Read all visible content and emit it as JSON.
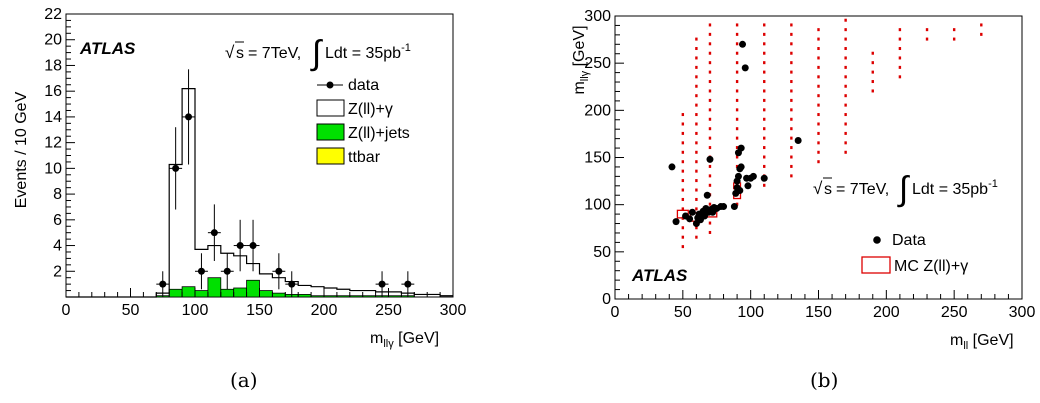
{
  "chart_data": [
    {
      "panel": "a",
      "type": "bar",
      "caption": "(a)",
      "brand": "ATLAS",
      "energy_label": "= 7TeV,",
      "lumi_label": "Ldt = 35pb",
      "lumi_exp": "-1",
      "xlabel": "m",
      "xlabel_sub": "llγ",
      "xlabel_unit": "[GeV]",
      "ylabel": "Events / 10 GeV",
      "xlim": [
        0,
        300
      ],
      "ylim": [
        0,
        22
      ],
      "xticks": [
        0,
        50,
        100,
        150,
        200,
        250,
        300
      ],
      "yticks": [
        2,
        4,
        6,
        8,
        10,
        12,
        14,
        16,
        18,
        20,
        22
      ],
      "bin_edges": [
        0,
        10,
        20,
        30,
        40,
        50,
        60,
        70,
        80,
        90,
        100,
        110,
        120,
        130,
        140,
        150,
        160,
        170,
        180,
        190,
        200,
        210,
        220,
        230,
        240,
        250,
        260,
        270,
        280,
        290,
        300
      ],
      "series": [
        {
          "name": "Z(ll)+γ",
          "style": "step",
          "values": [
            0,
            0,
            0,
            0,
            0,
            0,
            0,
            0.3,
            10.3,
            16.2,
            3.7,
            4.0,
            3.4,
            3.2,
            2.6,
            1.8,
            1.5,
            1.2,
            0.9,
            0.8,
            0.7,
            0.6,
            0.5,
            0.5,
            0.4,
            0.4,
            0.3,
            0.2,
            0.2,
            0.1
          ]
        },
        {
          "name": "Z(ll)+jets",
          "style": "fill",
          "color": "#00e000",
          "values": [
            0,
            0,
            0,
            0,
            0,
            0,
            0,
            0.1,
            0.6,
            0.8,
            0.5,
            1.5,
            0.6,
            0.7,
            1.3,
            0.5,
            0.3,
            0.2,
            0.2,
            0.1,
            0.1,
            0.1,
            0.1,
            0.1,
            0.1,
            0.1,
            0.1,
            0,
            0,
            0
          ]
        },
        {
          "name": "ttbar",
          "style": "fill",
          "color": "#ffff00",
          "values": [
            0,
            0,
            0,
            0,
            0,
            0,
            0,
            0,
            0,
            0,
            0,
            0,
            0,
            0,
            0,
            0,
            0,
            0,
            0,
            0,
            0,
            0,
            0,
            0,
            0,
            0,
            0,
            0,
            0,
            0
          ]
        }
      ],
      "data_points": [
        {
          "x": 75,
          "y": 1,
          "err": 1.0
        },
        {
          "x": 85,
          "y": 10,
          "err": 3.2
        },
        {
          "x": 95,
          "y": 14,
          "err": 3.7
        },
        {
          "x": 105,
          "y": 2,
          "err": 1.4
        },
        {
          "x": 115,
          "y": 5,
          "err": 2.2
        },
        {
          "x": 125,
          "y": 2,
          "err": 1.4
        },
        {
          "x": 135,
          "y": 4,
          "err": 2.0
        },
        {
          "x": 145,
          "y": 4,
          "err": 2.0
        },
        {
          "x": 165,
          "y": 2,
          "err": 1.4
        },
        {
          "x": 175,
          "y": 1,
          "err": 1.0
        },
        {
          "x": 245,
          "y": 1,
          "err": 1.0
        },
        {
          "x": 265,
          "y": 1,
          "err": 1.0
        }
      ],
      "legend": {
        "position": "top-right",
        "entries": [
          {
            "label": "data",
            "kind": "marker"
          },
          {
            "label": "Z(ll)+γ",
            "kind": "box",
            "color": "#ffffff"
          },
          {
            "label": "Z(ll)+jets",
            "kind": "box",
            "color": "#00e000"
          },
          {
            "label": "ttbar",
            "kind": "box",
            "color": "#ffff00"
          }
        ]
      },
      "grid": false
    },
    {
      "panel": "b",
      "type": "scatter",
      "caption": "(b)",
      "brand": "ATLAS",
      "energy_label": "= 7TeV,",
      "lumi_label": "Ldt = 35pb",
      "lumi_exp": "-1",
      "xlabel": "m",
      "xlabel_sub": "ll",
      "xlabel_unit": "[GeV]",
      "ylabel": "m",
      "ylabel_sub": "llγ",
      "ylabel_unit": "[GeV]",
      "xlim": [
        0,
        300
      ],
      "ylim": [
        0,
        300
      ],
      "xticks": [
        0,
        50,
        100,
        150,
        200,
        250,
        300
      ],
      "yticks": [
        0,
        50,
        100,
        150,
        200,
        250,
        300
      ],
      "data_points": [
        [
          42,
          140
        ],
        [
          45,
          82
        ],
        [
          52,
          88
        ],
        [
          55,
          85
        ],
        [
          57,
          92
        ],
        [
          60,
          80
        ],
        [
          61,
          86
        ],
        [
          62,
          90
        ],
        [
          63,
          84
        ],
        [
          65,
          93
        ],
        [
          66,
          88
        ],
        [
          67,
          96
        ],
        [
          68,
          110
        ],
        [
          69,
          92
        ],
        [
          70,
          148
        ],
        [
          71,
          95
        ],
        [
          72,
          92
        ],
        [
          73,
          97
        ],
        [
          75,
          96
        ],
        [
          78,
          98
        ],
        [
          80,
          98
        ],
        [
          88,
          98
        ],
        [
          89,
          112
        ],
        [
          90,
          118
        ],
        [
          90,
          125
        ],
        [
          91,
          130
        ],
        [
          91,
          155
        ],
        [
          92,
          115
        ],
        [
          92,
          138
        ],
        [
          93,
          140
        ],
        [
          93,
          160
        ],
        [
          94,
          270
        ],
        [
          96,
          245
        ],
        [
          97,
          128
        ],
        [
          98,
          120
        ],
        [
          100,
          128
        ],
        [
          102,
          130
        ],
        [
          110,
          128
        ],
        [
          135,
          168
        ]
      ],
      "mc_columns": [
        {
          "x": 50,
          "ymin": 55,
          "ymax": 195
        },
        {
          "x": 60,
          "ymin": 65,
          "ymax": 275
        },
        {
          "x": 70,
          "ymin": 70,
          "ymax": 295
        },
        {
          "x": 90,
          "ymin": 100,
          "ymax": 295
        },
        {
          "x": 110,
          "ymin": 120,
          "ymax": 295
        },
        {
          "x": 130,
          "ymin": 130,
          "ymax": 290
        },
        {
          "x": 150,
          "ymin": 145,
          "ymax": 290
        },
        {
          "x": 170,
          "ymin": 155,
          "ymax": 295
        },
        {
          "x": 190,
          "ymin": 220,
          "ymax": 265
        },
        {
          "x": 210,
          "ymin": 235,
          "ymax": 290
        },
        {
          "x": 230,
          "ymin": 275,
          "ymax": 285
        },
        {
          "x": 250,
          "ymin": 275,
          "ymax": 285
        },
        {
          "x": 270,
          "ymin": 280,
          "ymax": 295
        }
      ],
      "mc_boxes": [
        {
          "x": 50,
          "y": 90,
          "w": 8,
          "h": 8
        },
        {
          "x": 60,
          "y": 87,
          "w": 9,
          "h": 9
        },
        {
          "x": 70,
          "y": 92,
          "w": 10,
          "h": 10
        },
        {
          "x": 90,
          "y": 110,
          "w": 5,
          "h": 7
        },
        {
          "x": 90,
          "y": 120,
          "w": 5,
          "h": 6
        }
      ],
      "mc_color": "#dd0000",
      "legend": {
        "position": "bottom-right",
        "entries": [
          {
            "label": "Data",
            "kind": "marker"
          },
          {
            "label": "MC Z(ll)+γ",
            "kind": "box",
            "color": "#dd0000"
          }
        ]
      },
      "grid": false
    }
  ]
}
